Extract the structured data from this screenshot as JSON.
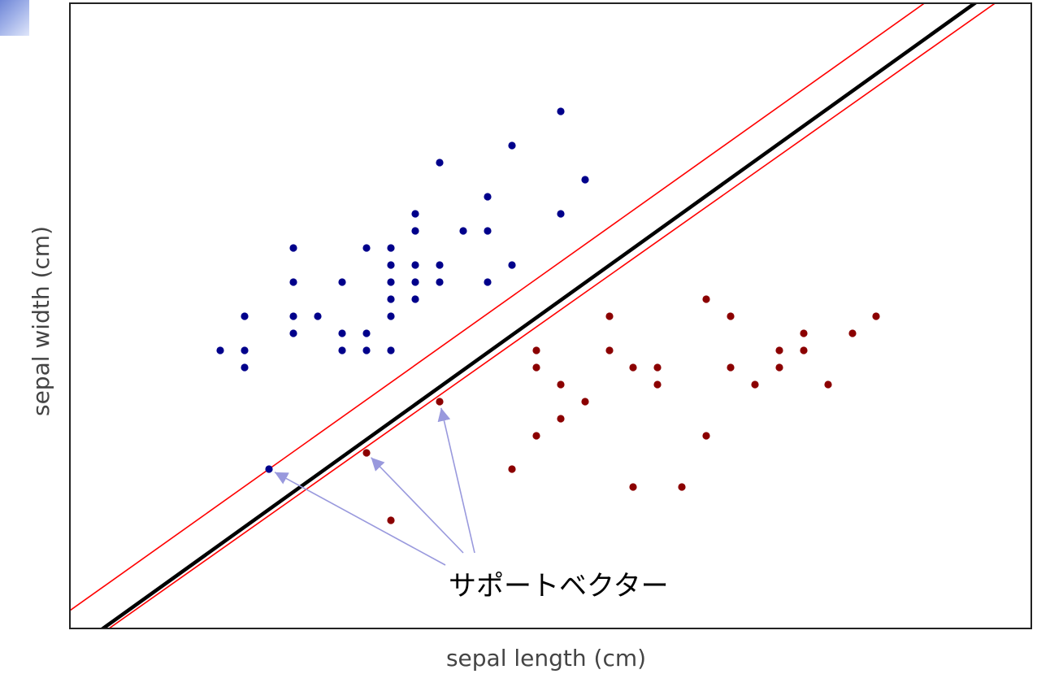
{
  "chart_data": {
    "type": "scatter",
    "title": "",
    "xlabel": "sepal length (cm)",
    "ylabel": "sepal width (cm)",
    "grid": false,
    "series": [
      {
        "color": "#00008b",
        "points": [
          [
            271,
            431
          ],
          [
            301,
            389
          ],
          [
            301,
            431
          ],
          [
            301,
            452
          ],
          [
            361,
            305
          ],
          [
            361,
            347
          ],
          [
            361,
            389
          ],
          [
            361,
            410
          ],
          [
            391,
            389
          ],
          [
            421,
            347
          ],
          [
            421,
            410
          ],
          [
            421,
            431
          ],
          [
            451,
            305
          ],
          [
            451,
            410
          ],
          [
            451,
            431
          ],
          [
            481,
            305
          ],
          [
            481,
            326
          ],
          [
            481,
            347
          ],
          [
            481,
            368
          ],
          [
            481,
            389
          ],
          [
            481,
            431
          ],
          [
            511,
            263
          ],
          [
            511,
            284
          ],
          [
            511,
            326
          ],
          [
            511,
            347
          ],
          [
            511,
            368
          ],
          [
            541,
            200
          ],
          [
            541,
            326
          ],
          [
            541,
            347
          ],
          [
            570,
            284
          ],
          [
            600,
            242
          ],
          [
            600,
            284
          ],
          [
            600,
            347
          ],
          [
            630,
            179
          ],
          [
            630,
            326
          ],
          [
            690,
            137
          ],
          [
            690,
            263
          ],
          [
            720,
            221
          ],
          [
            331,
            577
          ]
        ]
      },
      {
        "color": "#8b0000",
        "points": [
          [
            750,
            389
          ],
          [
            750,
            431
          ],
          [
            660,
            431
          ],
          [
            660,
            452
          ],
          [
            690,
            473
          ],
          [
            720,
            494
          ],
          [
            690,
            515
          ],
          [
            660,
            536
          ],
          [
            630,
            577
          ],
          [
            779,
            452
          ],
          [
            809,
            452
          ],
          [
            809,
            473
          ],
          [
            869,
            368
          ],
          [
            899,
            389
          ],
          [
            899,
            452
          ],
          [
            929,
            473
          ],
          [
            959,
            431
          ],
          [
            959,
            452
          ],
          [
            989,
            410
          ],
          [
            989,
            431
          ],
          [
            1019,
            473
          ],
          [
            1049,
            410
          ],
          [
            1078,
            389
          ],
          [
            869,
            536
          ],
          [
            779,
            599
          ],
          [
            839,
            599
          ],
          [
            481,
            640
          ],
          [
            451,
            557
          ],
          [
            541,
            494
          ]
        ]
      }
    ],
    "decision_boundary": {
      "color": "#000000"
    },
    "margins": {
      "color": "#ff0000"
    },
    "annotation": {
      "text": "サポートベクター",
      "arrow_color": "#9999dd",
      "targets": [
        [
          331,
          577
        ],
        [
          451,
          557
        ],
        [
          541,
          494
        ]
      ]
    }
  }
}
